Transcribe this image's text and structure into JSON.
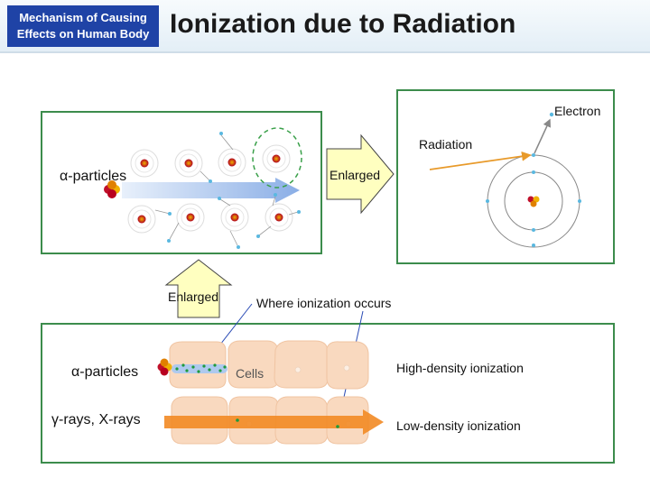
{
  "header": {
    "section_tag_line1": "Mechanism of Causing",
    "section_tag_line2": "Effects on Human Body",
    "title": "Ionization due to Radiation"
  },
  "top_left_panel": {
    "alpha_label": "α-particles"
  },
  "enlarged_right_arrow": {
    "label": "Enlarged"
  },
  "atom_panel": {
    "electron_label": "Electron",
    "radiation_label": "Radiation"
  },
  "enlarged_up_arrow": {
    "label": "Enlarged"
  },
  "callout": {
    "label": "Where ionization occurs"
  },
  "bottom_panel": {
    "alpha_label": "α-particles",
    "gamma_label": "γ-rays, X-rays",
    "cells_label": "Cells",
    "high_density_label": "High-density ionization",
    "low_density_label": "Low-density ionization"
  },
  "colors": {
    "header_tag": "#1f43a6",
    "panel_border": "#3c8c4c",
    "arrow_fill": "#ffffc0",
    "gamma_arrow": "#f28a24",
    "alpha_track": "#aec9ee",
    "electron": "#5ab8e0",
    "cell": "#f9d9bf"
  }
}
